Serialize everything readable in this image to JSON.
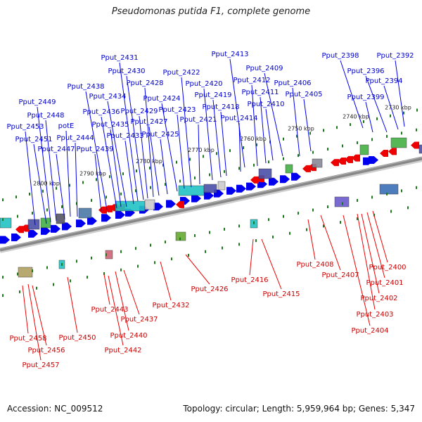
{
  "title": "Pseudomonas putida F1, complete genome",
  "accession": "Accession: NC_009512",
  "summary": "Topology: circular; Length: 5,959,964 bp; Genes: 5,347",
  "colors": {
    "forward": "#0000ee",
    "reverse": "#ee0000",
    "backbone": "#888888",
    "tick": "#1a7a1a"
  },
  "scale_labels": [
    "2730 kbp",
    "2740 kbp",
    "2750 kbp",
    "2760 kbp",
    "2770 kbp",
    "2780 kbp",
    "2790 kbp",
    "2800 kbp"
  ],
  "top_labels": [
    "Pput_2392",
    "Pput_2394",
    "Pput_2396",
    "Pput_2398",
    "Pput_2399",
    "Pput_2405",
    "Pput_2406",
    "Pput_2409",
    "Pput_2410",
    "Pput_2411",
    "Pput_2412",
    "Pput_2413",
    "Pput_2414",
    "Pput_2418",
    "Pput_2419",
    "Pput_2420",
    "Pput_2421",
    "Pput_2422",
    "Pput_2423",
    "Pput_2424",
    "Pput_2425",
    "Pput_2427",
    "Pput_2428",
    "Pput_2429",
    "Pput_2430",
    "Pput_2431",
    "Pput_2433",
    "Pput_2434",
    "Pput_2435",
    "Pput_2436",
    "Pput_2438",
    "Pput_2439",
    "Pput_2444",
    "potE",
    "Pput_2447",
    "Pput_2448",
    "Pput_2449",
    "Pput_2451",
    "Pput_2453"
  ],
  "bottom_labels": [
    "Pput_2400",
    "Pput_2401",
    "Pput_2402",
    "Pput_2403",
    "Pput_2404",
    "Pput_2407",
    "Pput_2408",
    "Pput_2415",
    "Pput_2416",
    "Pput_2426",
    "Pput_2432",
    "Pput_2437",
    "Pput_2440",
    "Pput_2442",
    "Pput_2443",
    "Pput_2450",
    "Pput_2456",
    "Pput_2457",
    "Pput_2458"
  ]
}
